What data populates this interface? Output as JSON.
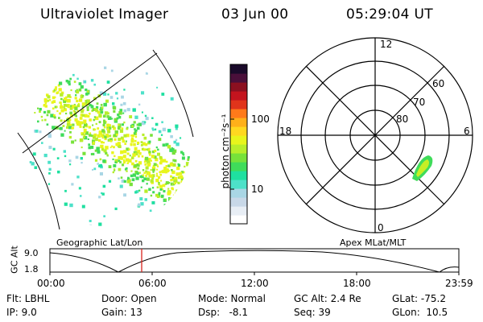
{
  "header": {
    "instrument": "Ultraviolet Imager",
    "date": "03 Jun 00",
    "time": "05:29:04 UT"
  },
  "left_panel": {
    "label": "Geographic Lat/Lon"
  },
  "colorbar": {
    "unit_label": "photon cm⁻²s⁻¹",
    "ticks": [
      "100",
      "10"
    ],
    "colors": [
      "#ffffff",
      "#e8eef5",
      "#c8d8e8",
      "#a9d6e5",
      "#4de1c9",
      "#1fe0a0",
      "#3fdc5a",
      "#77e23a",
      "#b8ee2b",
      "#e8f51c",
      "#ffd820",
      "#ffb01a",
      "#ff7a1a",
      "#e0341b",
      "#c4141e",
      "#8c1020",
      "#4a0f3a",
      "#1a0a2a"
    ]
  },
  "polar_panel": {
    "label": "Apex MLat/MLT",
    "mlt_labels": {
      "top": "12",
      "bottom": "0",
      "left": "18",
      "right": "6"
    },
    "lat_labels": [
      "60",
      "70",
      "80"
    ]
  },
  "altitude_plot": {
    "ylabel": "GC Alt",
    "yticks": [
      "9.0",
      "1.8"
    ],
    "xticks": [
      "00:00",
      "06:00",
      "12:00",
      "18:00",
      "23:59"
    ]
  },
  "info": {
    "flt": "Flt: LBHL",
    "ip": "IP: 9.0",
    "door": "Door: Open",
    "gain": "Gain: 13",
    "mode": "Mode: Normal",
    "dsp": "Dsp:   -8.1",
    "gcalt": "GC Alt: 2.4 Re",
    "seq": "Seq: 39",
    "glat": "GLat: -75.2",
    "glon": "GLon:  10.5"
  },
  "accent": {
    "time_marker": "#d8231c"
  }
}
